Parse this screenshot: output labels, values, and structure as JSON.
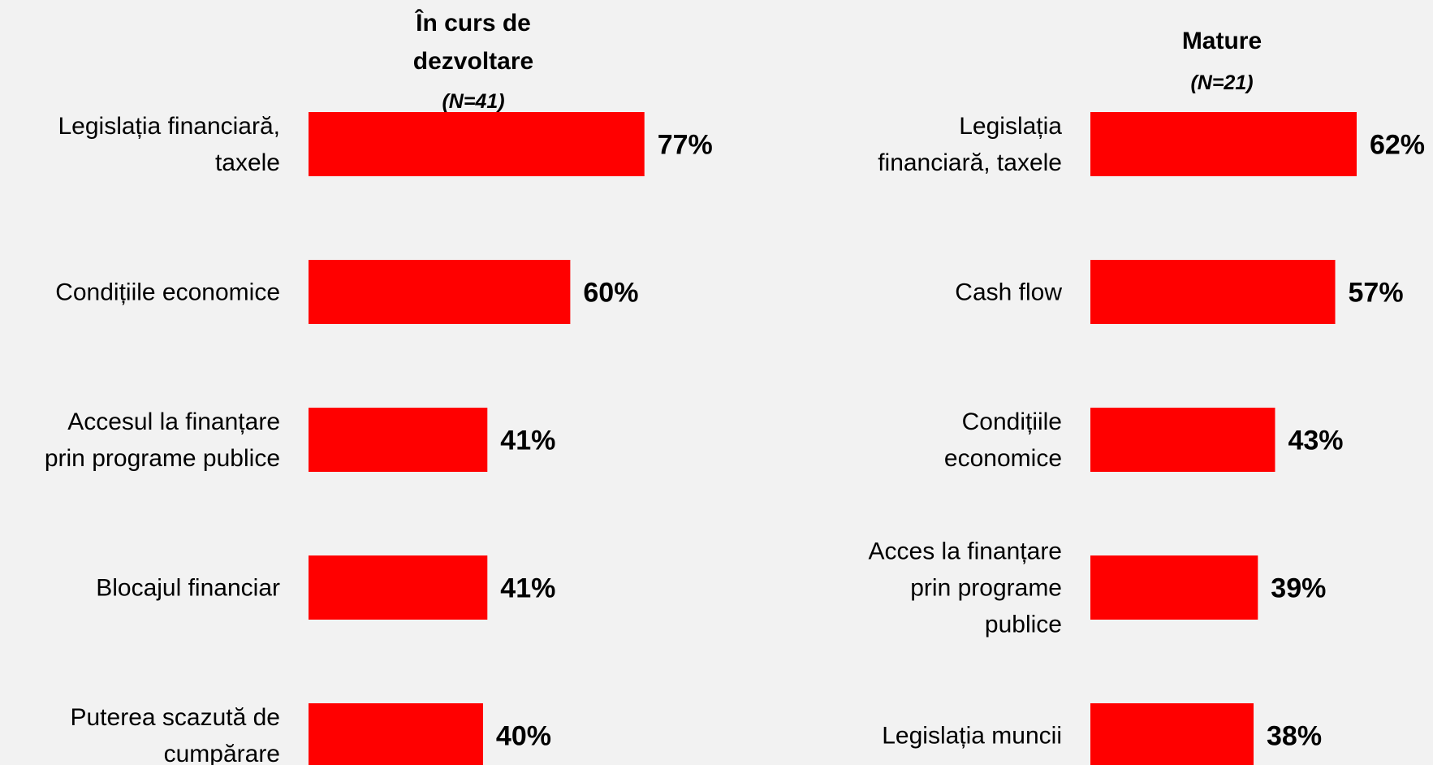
{
  "colors": {
    "bar": "#ff0000",
    "text": "#000000",
    "background": "#f2f2f2"
  },
  "chart_data": [
    {
      "type": "bar",
      "orientation": "horizontal",
      "title": "În curs de dezvoltare",
      "subtitle": "(N=41)",
      "categories": [
        "Legislația financiară, taxele",
        "Condițiile economice",
        "Accesul la finanțare prin programe publice",
        "Blocajul financiar",
        "Puterea scazută de cumpărare"
      ],
      "values": [
        77,
        60,
        41,
        41,
        40
      ],
      "value_labels": [
        "77%",
        "60%",
        "41%",
        "41%",
        "40%"
      ],
      "unit": "%",
      "xlim": [
        0,
        100
      ],
      "grid": false,
      "legend": "none"
    },
    {
      "type": "bar",
      "orientation": "horizontal",
      "title": "Mature",
      "subtitle": "(N=21)",
      "categories": [
        "Legislația financiară, taxele",
        "Cash flow",
        "Condițiile economice",
        "Acces la finanțare prin programe publice",
        "Legislația muncii"
      ],
      "values": [
        62,
        57,
        43,
        39,
        38
      ],
      "value_labels": [
        "62%",
        "57%",
        "43%",
        "39%",
        "38%"
      ],
      "unit": "%",
      "xlim": [
        0,
        100
      ],
      "grid": false,
      "legend": "none"
    }
  ]
}
